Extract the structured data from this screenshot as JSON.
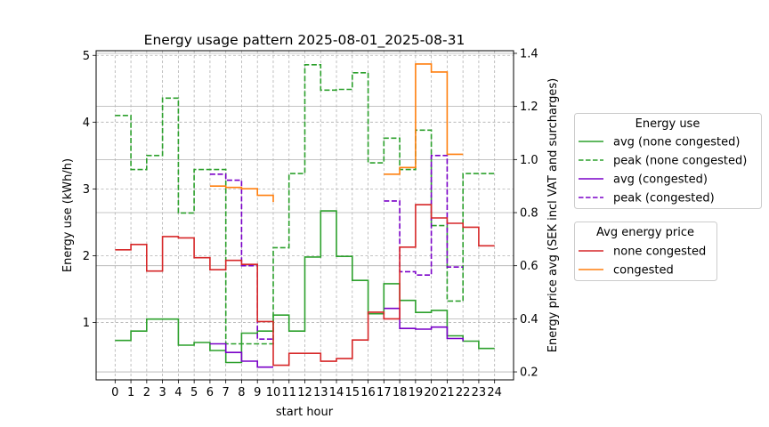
{
  "chart_data": {
    "type": "line",
    "title": "Energy usage pattern 2025-08-01_2025-08-31",
    "xlabel": "start hour",
    "ylabel": "Energy use (kWh/h)",
    "y2label": "Energy price avg (SEK incl VAT and surcharges)",
    "x_ticks": [
      "0",
      "1",
      "2",
      "3",
      "4",
      "5",
      "6",
      "7",
      "8",
      "9",
      "10",
      "11",
      "12",
      "13",
      "14",
      "15",
      "16",
      "17",
      "18",
      "19",
      "20",
      "21",
      "22",
      "23",
      "24"
    ],
    "xlim": [
      -1.2,
      25.2
    ],
    "ylim": [
      0.14,
      5.07
    ],
    "y_ticks": [
      1,
      2,
      3,
      4,
      5
    ],
    "y2lim": [
      0.17,
      1.41
    ],
    "y2_ticks": [
      "0.2",
      "0.4",
      "0.6",
      "0.8",
      "1.0",
      "1.2",
      "1.4"
    ],
    "y2_tick_values": [
      0.2,
      0.4,
      0.6,
      0.8,
      1.0,
      1.2,
      1.4
    ],
    "grid": true,
    "legends": [
      {
        "title": "Energy use",
        "entries": [
          {
            "label": "avg (none congested)",
            "color": "#2ca02c",
            "dash": false
          },
          {
            "label": "peak (none congested)",
            "color": "#2ca02c",
            "dash": true
          },
          {
            "label": "avg (congested)",
            "color": "#7a00c8",
            "dash": false
          },
          {
            "label": "peak (congested)",
            "color": "#7a00c8",
            "dash": true
          }
        ]
      },
      {
        "title": "Avg energy price",
        "entries": [
          {
            "label": "none congested",
            "color": "#d62728",
            "dash": false
          },
          {
            "label": "congested",
            "color": "#ff7f0e",
            "dash": false
          }
        ]
      }
    ],
    "series": [
      {
        "name": "avg (none congested)",
        "axis": "left",
        "color": "#2ca02c",
        "dash": false,
        "x": [
          0,
          1,
          2,
          3,
          4,
          5,
          6,
          7,
          8,
          9,
          10,
          11,
          12,
          13,
          14,
          15,
          16,
          17,
          18,
          19,
          20,
          21,
          22,
          23,
          24
        ],
        "y": [
          0.73,
          0.87,
          1.05,
          1.05,
          0.66,
          0.7,
          0.58,
          0.4,
          0.84,
          0.87,
          1.11,
          0.87,
          1.98,
          2.67,
          1.99,
          1.63,
          1.13,
          1.58,
          1.33,
          1.15,
          1.18,
          0.8,
          0.72,
          0.61,
          0.61
        ]
      },
      {
        "name": "peak (none congested)",
        "axis": "left",
        "color": "#2ca02c",
        "dash": true,
        "x": [
          0,
          1,
          2,
          3,
          4,
          5,
          6,
          7,
          8,
          9,
          10,
          11,
          12,
          13,
          14,
          15,
          16,
          17,
          18,
          19,
          20,
          21,
          22,
          23,
          24
        ],
        "y": [
          4.1,
          3.29,
          3.5,
          4.36,
          2.64,
          3.29,
          3.29,
          0.68,
          0.68,
          0.68,
          2.12,
          3.23,
          4.86,
          4.48,
          4.49,
          4.74,
          3.39,
          3.76,
          3.29,
          3.88,
          2.45,
          1.32,
          3.23,
          3.23,
          3.23
        ]
      },
      {
        "name": "avg (congested)",
        "axis": "left",
        "color": "#7a00c8",
        "dash": false,
        "x": [
          6,
          7,
          8,
          9,
          10,
          17,
          18,
          19,
          20,
          21,
          22
        ],
        "y": [
          0.68,
          0.55,
          0.42,
          0.33,
          0.33,
          1.21,
          0.91,
          0.9,
          0.93,
          0.76,
          0.72
        ]
      },
      {
        "name": "peak (congested)",
        "axis": "left",
        "color": "#7a00c8",
        "dash": true,
        "x": [
          6,
          7,
          8,
          9,
          10,
          17,
          18,
          19,
          20,
          21,
          22
        ],
        "y": [
          3.22,
          3.13,
          1.85,
          0.75,
          0.75,
          2.82,
          1.76,
          1.71,
          3.5,
          1.83,
          1.83
        ]
      },
      {
        "name": "none congested",
        "axis": "right",
        "color": "#d62728",
        "dash": false,
        "x": [
          0,
          1,
          2,
          3,
          4,
          5,
          6,
          7,
          8,
          9,
          10,
          11,
          12,
          13,
          14,
          15,
          16,
          17,
          18,
          19,
          20,
          21,
          22,
          23,
          24
        ],
        "y": [
          0.66,
          0.68,
          0.58,
          0.71,
          0.705,
          0.63,
          0.585,
          0.62,
          0.605,
          0.39,
          0.225,
          0.27,
          0.27,
          0.24,
          0.25,
          0.32,
          0.425,
          0.4,
          0.67,
          0.83,
          0.78,
          0.76,
          0.745,
          0.675,
          0.675
        ]
      },
      {
        "name": "congested",
        "axis": "right",
        "color": "#ff7f0e",
        "dash": false,
        "x": [
          6,
          7,
          8,
          9,
          10,
          17,
          18,
          19,
          20,
          21,
          22
        ],
        "y": [
          0.9,
          0.895,
          0.89,
          0.865,
          0.84,
          0.945,
          0.97,
          1.36,
          1.33,
          1.02,
          1.02
        ]
      }
    ]
  }
}
